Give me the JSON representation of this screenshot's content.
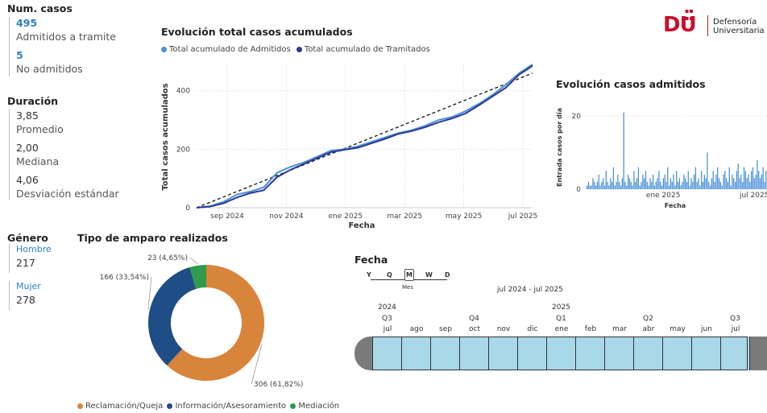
{
  "kpis": {
    "num_casos_title": "Num. casos",
    "admitidos_value": "495",
    "admitidos_label": "Admitidos a tramite",
    "no_admitidos_value": "5",
    "no_admitidos_label": "No admitidos",
    "duracion_title": "Duración",
    "promedio_value": "3,85",
    "promedio_label": "Promedio",
    "mediana_value": "2,00",
    "mediana_label": "Mediana",
    "desv_value": "4,06",
    "desv_label": "Desviación estándar",
    "genero_title": "Género",
    "hombre_label": "Hombre",
    "hombre_value": "217",
    "mujer_label": "Mujer",
    "mujer_value": "278"
  },
  "logo": {
    "mark": "DU",
    "line1": "Defensoría",
    "line2": "Universitaria"
  },
  "colors": {
    "admitidos": "#4a90d9",
    "tramitados": "#2b3a8f",
    "reclamacion": "#d9843b",
    "informacion": "#1f4e87",
    "mediacion": "#2e9b4f",
    "slicer_fill": "#a9d8e9",
    "brand_red": "#c8102e"
  },
  "chart_data": [
    {
      "type": "line",
      "title": "Evolución total casos acumulados",
      "xlabel": "Fecha",
      "ylabel": "Total casos acumulados",
      "ylim": [
        0,
        490
      ],
      "yticks": [
        "0",
        "200",
        "400"
      ],
      "xticks": [
        "sep 2024",
        "nov 2024",
        "ene 2025",
        "mar 2025",
        "may 2025",
        "jul 2025"
      ],
      "legend": "top",
      "grid": true,
      "x": [
        "2024-07-25",
        "2024-08-10",
        "2024-08-25",
        "2024-09-10",
        "2024-09-25",
        "2024-10-10",
        "2024-10-25",
        "2024-11-10",
        "2024-11-25",
        "2024-12-10",
        "2024-12-25",
        "2025-01-10",
        "2025-01-25",
        "2025-02-10",
        "2025-02-25",
        "2025-03-10",
        "2025-03-25",
        "2025-04-10",
        "2025-04-25",
        "2025-05-10",
        "2025-05-25",
        "2025-06-10",
        "2025-06-25",
        "2025-07-10",
        "2025-07-25",
        "2025-08-01"
      ],
      "series": [
        {
          "name": "Total acumulado de Admitidos",
          "values": [
            0,
            5,
            20,
            45,
            55,
            70,
            120,
            140,
            155,
            175,
            195,
            200,
            210,
            225,
            240,
            255,
            265,
            280,
            300,
            310,
            330,
            355,
            385,
            420,
            460,
            490
          ]
        },
        {
          "name": "Total acumulado de Tramitados",
          "values": [
            0,
            4,
            15,
            35,
            50,
            60,
            105,
            130,
            150,
            170,
            190,
            198,
            205,
            220,
            235,
            252,
            262,
            275,
            292,
            305,
            322,
            350,
            380,
            410,
            455,
            485
          ]
        }
      ],
      "trend_line": {
        "start": 0,
        "end": 460
      }
    },
    {
      "type": "bar",
      "title": "Evolución casos admitidos",
      "xlabel": "Fecha",
      "ylabel": "Entrada casos por día",
      "ylim": [
        0,
        24
      ],
      "yticks": [
        "0",
        "20"
      ],
      "xticks": [
        "ene 2025",
        "jul 2025"
      ],
      "values": [
        1,
        2,
        1,
        1,
        3,
        2,
        1,
        2,
        4,
        1,
        2,
        3,
        1,
        5,
        2,
        1,
        3,
        2,
        6,
        1,
        2,
        4,
        2,
        1,
        3,
        21,
        2,
        1,
        4,
        3,
        2,
        1,
        5,
        2,
        3,
        6,
        1,
        2,
        4,
        3,
        5,
        2,
        1,
        3,
        2,
        4,
        1,
        2,
        3,
        5,
        2,
        1,
        3,
        4,
        2,
        6,
        1,
        3,
        2,
        4,
        1,
        5,
        2,
        3,
        1,
        2,
        4,
        3,
        2,
        5,
        1,
        3,
        2,
        4,
        6,
        2,
        3,
        1,
        5,
        2,
        4,
        3,
        10,
        2,
        1,
        3,
        5,
        2,
        4,
        6,
        3,
        2,
        1,
        4,
        5,
        3,
        2,
        6,
        1,
        4,
        3,
        2,
        5,
        7,
        3,
        4,
        2,
        6,
        5,
        3,
        4,
        2,
        5,
        6,
        3,
        4,
        8,
        5,
        3,
        4,
        6,
        2,
        5
      ]
    },
    {
      "type": "pie",
      "title": "Tipo de amparo realizados",
      "slices": [
        {
          "name": "Reclamación/Queja",
          "value": 306,
          "label": "306 (61,82%)"
        },
        {
          "name": "Información/Asesoramiento",
          "value": 166,
          "label": "166 (33,54%)"
        },
        {
          "name": "Mediación",
          "value": 23,
          "label": "23 (4,65%)"
        }
      ],
      "legend": "bottom"
    }
  ],
  "slicer": {
    "title": "Fecha",
    "levels": [
      "Y",
      "Q",
      "M",
      "W",
      "D"
    ],
    "selected_level": "Mes",
    "range_text": "jul 2024 - jul 2025",
    "year_2024": "2024",
    "year_2025": "2025",
    "quarters": {
      "q3a": "Q3",
      "q4": "Q4",
      "q1": "Q1",
      "q2": "Q2",
      "q3b": "Q3"
    },
    "months": [
      "jul",
      "ago",
      "sep",
      "oct",
      "nov",
      "dic",
      "ene",
      "feb",
      "mar",
      "abr",
      "may",
      "jun",
      "jul"
    ]
  }
}
